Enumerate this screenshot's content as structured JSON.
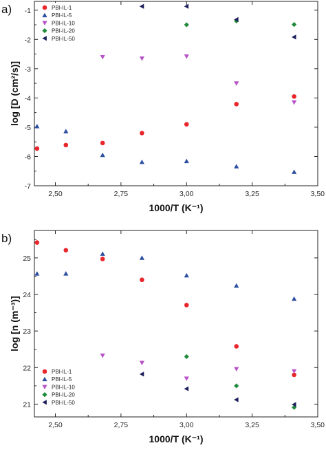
{
  "colors": {
    "PBI-IL-1": "#e8262b",
    "PBI-IL-5": "#2c4fa1",
    "PBI-IL-10": "#b852c8",
    "PBI-IL-20": "#1f8a3a",
    "PBI-IL-50": "#1c1f5c"
  },
  "markers": {
    "PBI-IL-1": "circle",
    "PBI-IL-5": "triangle-up",
    "PBI-IL-10": "triangle-down",
    "PBI-IL-20": "diamond",
    "PBI-IL-50": "triangle-left"
  },
  "chart_data": [
    {
      "type": "scatter",
      "panel_label": "a)",
      "xlabel": "1000/T (K⁻¹)",
      "ylabel": "log [D (cm²/s)]",
      "xlim": [
        2.42,
        3.5
      ],
      "ylim": [
        -7,
        -0.7
      ],
      "xticks": [
        2.5,
        2.75,
        3.0,
        3.25,
        3.5
      ],
      "xtick_labels": [
        "2,50",
        "2,75",
        "3,00",
        "3,25",
        "3,50"
      ],
      "yticks": [
        -7,
        -6,
        -5,
        -4,
        -3,
        -2,
        -1
      ],
      "ytick_labels": [
        "-7",
        "-6",
        "-5",
        "-4",
        "-3",
        "-2",
        "-1"
      ],
      "legend_position": "top-left",
      "grid": false,
      "series": [
        {
          "name": "PBI-IL-1",
          "x": [
            2.43,
            2.54,
            2.68,
            2.83,
            3.0,
            3.19,
            3.41
          ],
          "y": [
            -5.73,
            -5.61,
            -5.54,
            -5.2,
            -4.9,
            -4.21,
            -3.95
          ]
        },
        {
          "name": "PBI-IL-5",
          "x": [
            2.43,
            2.54,
            2.68,
            2.83,
            3.0,
            3.19,
            3.41
          ],
          "y": [
            -4.97,
            -5.14,
            -5.95,
            -6.19,
            -6.16,
            -6.34,
            -6.53
          ]
        },
        {
          "name": "PBI-IL-10",
          "x": [
            2.68,
            2.83,
            3.0,
            3.19,
            3.41
          ],
          "y": [
            -2.6,
            -2.65,
            -2.58,
            -3.5,
            -4.15
          ]
        },
        {
          "name": "PBI-IL-20",
          "x": [
            3.0,
            3.19,
            3.41
          ],
          "y": [
            -1.5,
            -1.37,
            -1.49
          ]
        },
        {
          "name": "PBI-IL-50",
          "x": [
            2.83,
            3.0,
            3.19,
            3.41
          ],
          "y": [
            -0.87,
            -0.87,
            -1.32,
            -1.92
          ]
        }
      ]
    },
    {
      "type": "scatter",
      "panel_label": "b)",
      "xlabel": "1000/T (K⁻¹)",
      "ylabel": "log [n (m⁻³)]",
      "xlim": [
        2.42,
        3.5
      ],
      "ylim": [
        20.65,
        25.75
      ],
      "xticks": [
        2.5,
        2.75,
        3.0,
        3.25,
        3.5
      ],
      "xtick_labels": [
        "2,50",
        "2,75",
        "3,00",
        "3,25",
        "3,50"
      ],
      "yticks": [
        21,
        22,
        23,
        24,
        25
      ],
      "ytick_labels": [
        "21",
        "22",
        "23",
        "24",
        "25"
      ],
      "legend_position": "bottom-left",
      "grid": false,
      "series": [
        {
          "name": "PBI-IL-1",
          "x": [
            2.43,
            2.54,
            2.68,
            2.83,
            3.0,
            3.19,
            3.41
          ],
          "y": [
            25.42,
            25.21,
            24.97,
            24.4,
            23.71,
            22.58,
            21.8
          ]
        },
        {
          "name": "PBI-IL-5",
          "x": [
            2.43,
            2.54,
            2.68,
            2.83,
            3.0,
            3.19,
            3.41
          ],
          "y": [
            24.57,
            24.57,
            25.11,
            25.0,
            24.52,
            24.24,
            23.88
          ]
        },
        {
          "name": "PBI-IL-10",
          "x": [
            2.68,
            2.83,
            3.0,
            3.19,
            3.41
          ],
          "y": [
            22.33,
            22.13,
            21.7,
            21.96,
            21.9
          ]
        },
        {
          "name": "PBI-IL-20",
          "x": [
            3.0,
            3.19,
            3.41
          ],
          "y": [
            22.3,
            21.5,
            20.91
          ]
        },
        {
          "name": "PBI-IL-50",
          "x": [
            2.83,
            3.0,
            3.19,
            3.41
          ],
          "y": [
            21.82,
            21.42,
            21.12,
            20.99
          ]
        }
      ]
    }
  ]
}
